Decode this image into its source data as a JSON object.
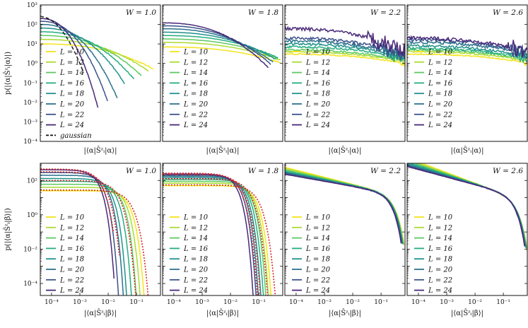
{
  "chart_data": [
    {
      "type": "line",
      "panel_label": "W = 1.0",
      "row": "diagonal",
      "xlabel": "|⟨α|Ŝᶻᵢ|α⟩|",
      "ylabel": "p(|⟨α|Ŝᶻᵢ|α⟩|)",
      "xscale": "linear",
      "xlim": [
        0,
        0.5
      ],
      "yscale": "log",
      "ylim": [
        0.0001,
        1000
      ],
      "legend": [
        "L = 10",
        "L = 12",
        "L = 14",
        "L = 16",
        "L = 18",
        "L = 20",
        "L = 22",
        "L = 24",
        "gaussian"
      ],
      "series": [
        {
          "name": "L = 10",
          "plateau": 10,
          "knee": 0.3,
          "cutoff": 0.47
        },
        {
          "name": "L = 12",
          "plateau": 17,
          "knee": 0.26,
          "cutoff": 0.45
        },
        {
          "name": "L = 14",
          "plateau": 27,
          "knee": 0.22,
          "cutoff": 0.42
        },
        {
          "name": "L = 16",
          "plateau": 42,
          "knee": 0.19,
          "cutoff": 0.39
        },
        {
          "name": "L = 18",
          "plateau": 65,
          "knee": 0.16,
          "cutoff": 0.35
        },
        {
          "name": "L = 20",
          "plateau": 100,
          "knee": 0.13,
          "cutoff": 0.32
        },
        {
          "name": "L = 22",
          "plateau": 145,
          "knee": 0.11,
          "cutoff": 0.28
        },
        {
          "name": "L = 24",
          "plateau": 200,
          "knee": 0.09,
          "cutoff": 0.24
        },
        {
          "name": "gaussian",
          "plateau": 250,
          "knee": 0.07,
          "cutoff": 0.18,
          "style": "dashed",
          "color": "#111111"
        }
      ]
    },
    {
      "type": "line",
      "panel_label": "W = 1.8",
      "row": "diagonal",
      "xlabel": "|⟨α|Ŝᶻᵢ|α⟩|",
      "xscale": "linear",
      "xlim": [
        0,
        0.5
      ],
      "yscale": "log",
      "ylim": [
        0.0001,
        1000
      ],
      "legend": [
        "L = 10",
        "L = 12",
        "L = 14",
        "L = 16",
        "L = 18",
        "L = 20",
        "L = 22",
        "L = 24"
      ],
      "series": [
        {
          "name": "L = 10",
          "plateau": 7,
          "knee": 0.38,
          "cutoff": 0.49
        },
        {
          "name": "L = 12",
          "plateau": 12,
          "knee": 0.36,
          "cutoff": 0.49
        },
        {
          "name": "L = 14",
          "plateau": 18,
          "knee": 0.34,
          "cutoff": 0.48
        },
        {
          "name": "L = 16",
          "plateau": 27,
          "knee": 0.32,
          "cutoff": 0.48
        },
        {
          "name": "L = 18",
          "plateau": 40,
          "knee": 0.29,
          "cutoff": 0.47
        },
        {
          "name": "L = 20",
          "plateau": 60,
          "knee": 0.26,
          "cutoff": 0.46
        },
        {
          "name": "L = 22",
          "plateau": 85,
          "knee": 0.24,
          "cutoff": 0.45
        },
        {
          "name": "L = 24",
          "plateau": 120,
          "knee": 0.22,
          "cutoff": 0.44
        }
      ]
    },
    {
      "type": "line",
      "panel_label": "W = 2.2",
      "row": "diagonal",
      "xlabel": "|⟨α|Ŝᶻᵢ|α⟩|",
      "xscale": "linear",
      "xlim": [
        0,
        0.5
      ],
      "yscale": "log",
      "ylim": [
        0.0001,
        1000
      ],
      "legend": [
        "L = 10",
        "L = 12",
        "L = 14",
        "L = 16",
        "L = 18",
        "L = 20",
        "L = 22",
        "L = 24"
      ],
      "series": [
        {
          "name": "L = 10",
          "plateau": 3,
          "knee": 0.48,
          "cutoff": 0.5
        },
        {
          "name": "L = 12",
          "plateau": 4,
          "knee": 0.46,
          "cutoff": 0.5
        },
        {
          "name": "L = 14",
          "plateau": 5,
          "knee": 0.45,
          "cutoff": 0.5
        },
        {
          "name": "L = 16",
          "plateau": 7,
          "knee": 0.44,
          "cutoff": 0.5
        },
        {
          "name": "L = 18",
          "plateau": 10,
          "knee": 0.42,
          "cutoff": 0.5
        },
        {
          "name": "L = 20",
          "plateau": 14,
          "knee": 0.4,
          "cutoff": 0.5
        },
        {
          "name": "L = 22",
          "plateau": 20,
          "knee": 0.38,
          "cutoff": 0.5
        },
        {
          "name": "L = 24",
          "plateau": 60,
          "knee": 0.34,
          "cutoff": 0.5
        }
      ]
    },
    {
      "type": "line",
      "panel_label": "W = 2.6",
      "row": "diagonal",
      "xlabel": "|⟨α|Ŝᶻᵢ|α⟩|",
      "xscale": "linear",
      "xlim": [
        0,
        0.5
      ],
      "yscale": "log",
      "ylim": [
        0.0001,
        1000
      ],
      "legend": [
        "L = 10",
        "L = 12",
        "L = 14",
        "L = 16",
        "L = 18",
        "L = 20",
        "L = 22",
        "L = 24"
      ],
      "series": [
        {
          "name": "L = 10",
          "plateau": 3,
          "knee": 0.49,
          "cutoff": 0.5
        },
        {
          "name": "L = 12",
          "plateau": 4,
          "knee": 0.48,
          "cutoff": 0.5
        },
        {
          "name": "L = 14",
          "plateau": 5,
          "knee": 0.47,
          "cutoff": 0.5
        },
        {
          "name": "L = 16",
          "plateau": 6,
          "knee": 0.46,
          "cutoff": 0.5
        },
        {
          "name": "L = 18",
          "plateau": 8,
          "knee": 0.45,
          "cutoff": 0.5
        },
        {
          "name": "L = 20",
          "plateau": 12,
          "knee": 0.44,
          "cutoff": 0.5
        },
        {
          "name": "L = 22",
          "plateau": 16,
          "knee": 0.43,
          "cutoff": 0.5
        },
        {
          "name": "L = 24",
          "plateau": 20,
          "knee": 0.42,
          "cutoff": 0.5
        }
      ]
    },
    {
      "type": "line",
      "panel_label": "W = 1.0",
      "row": "offdiagonal",
      "xlabel": "|⟨α|Ŝᶻᵢ|β⟩|",
      "ylabel": "p(|⟨α|Ŝᶻᵢ|β⟩|)",
      "xscale": "log",
      "xlim": [
        4e-05,
        0.7
      ],
      "yscale": "log",
      "ylim": [
        2e-05,
        1000
      ],
      "xticks": [
        "10⁻⁴",
        "10⁻³",
        "10⁻²",
        "10⁻¹"
      ],
      "red_dotted_fits": true,
      "legend": [
        "L = 10",
        "L = 12",
        "L = 14",
        "L = 16",
        "L = 18",
        "L = 20",
        "L = 22",
        "L = 24"
      ],
      "series": [
        {
          "name": "L = 10",
          "plateau": 25,
          "knee": 0.035,
          "cutoff": 0.35
        },
        {
          "name": "L = 12",
          "plateau": 40,
          "knee": 0.025,
          "cutoff": 0.25
        },
        {
          "name": "L = 14",
          "plateau": 60,
          "knee": 0.018,
          "cutoff": 0.16
        },
        {
          "name": "L = 16",
          "plateau": 90,
          "knee": 0.012,
          "cutoff": 0.1
        },
        {
          "name": "L = 18",
          "plateau": 130,
          "knee": 0.008,
          "cutoff": 0.065
        },
        {
          "name": "L = 20",
          "plateau": 200,
          "knee": 0.006,
          "cutoff": 0.042
        },
        {
          "name": "L = 22",
          "plateau": 290,
          "knee": 0.004,
          "cutoff": 0.026
        },
        {
          "name": "L = 24",
          "plateau": 420,
          "knee": 0.003,
          "cutoff": 0.016
        }
      ]
    },
    {
      "type": "line",
      "panel_label": "W = 1.8",
      "row": "offdiagonal",
      "xlabel": "|⟨α|Ŝᶻᵢ|β⟩|",
      "xscale": "log",
      "xlim": [
        4e-05,
        0.7
      ],
      "yscale": "log",
      "ylim": [
        2e-05,
        1000
      ],
      "xticks": [
        "10⁻⁴",
        "10⁻³",
        "10⁻²",
        "10⁻¹"
      ],
      "red_dotted_fits": true,
      "legend": [
        "L = 10",
        "L = 12",
        "L = 14",
        "L = 16",
        "L = 18",
        "L = 20",
        "L = 22",
        "L = 24"
      ],
      "series": [
        {
          "name": "L = 10",
          "plateau": 50,
          "knee": 0.05,
          "cutoff": 0.6
        },
        {
          "name": "L = 12",
          "plateau": 70,
          "knee": 0.04,
          "cutoff": 0.55
        },
        {
          "name": "L = 14",
          "plateau": 90,
          "knee": 0.032,
          "cutoff": 0.5
        },
        {
          "name": "L = 16",
          "plateau": 115,
          "knee": 0.026,
          "cutoff": 0.45
        },
        {
          "name": "L = 18",
          "plateau": 145,
          "knee": 0.021,
          "cutoff": 0.4
        },
        {
          "name": "L = 20",
          "plateau": 175,
          "knee": 0.017,
          "cutoff": 0.35
        },
        {
          "name": "L = 22",
          "plateau": 205,
          "knee": 0.014,
          "cutoff": 0.3
        },
        {
          "name": "L = 24",
          "plateau": 240,
          "knee": 0.011,
          "cutoff": 0.25
        }
      ]
    },
    {
      "type": "line",
      "panel_label": "W = 2.2",
      "row": "offdiagonal",
      "xlabel": "|⟨α|Ŝᶻᵢ|β⟩|",
      "xscale": "log",
      "xlim": [
        4e-05,
        0.7
      ],
      "yscale": "log",
      "ylim": [
        2e-05,
        1000
      ],
      "xticks": [
        "10⁻⁴",
        "10⁻³",
        "10⁻²",
        "10⁻¹"
      ],
      "legend": [
        "L = 10",
        "L = 12",
        "L = 14",
        "L = 16",
        "L = 18",
        "L = 20",
        "L = 22",
        "L = 24"
      ],
      "series": [
        {
          "name": "L = 10",
          "y_at_1e-4": 400,
          "y_at_1e-2": 60,
          "cutoff": 0.65
        },
        {
          "name": "L = 12",
          "y_at_1e-4": 350,
          "y_at_1e-2": 57,
          "cutoff": 0.63
        },
        {
          "name": "L = 14",
          "y_at_1e-4": 300,
          "y_at_1e-2": 55,
          "cutoff": 0.61
        },
        {
          "name": "L = 16",
          "y_at_1e-4": 260,
          "y_at_1e-2": 52,
          "cutoff": 0.59
        },
        {
          "name": "L = 18",
          "y_at_1e-4": 230,
          "y_at_1e-2": 50,
          "cutoff": 0.57
        },
        {
          "name": "L = 20",
          "y_at_1e-4": 210,
          "y_at_1e-2": 48,
          "cutoff": 0.55
        },
        {
          "name": "L = 22",
          "y_at_1e-4": 190,
          "y_at_1e-2": 46,
          "cutoff": 0.53
        },
        {
          "name": "L = 24",
          "y_at_1e-4": 175,
          "y_at_1e-2": 45,
          "cutoff": 0.51
        }
      ]
    },
    {
      "type": "line",
      "panel_label": "W = 2.6",
      "row": "offdiagonal",
      "xlabel": "|⟨α|Ŝᶻᵢ|β⟩|",
      "xscale": "log",
      "xlim": [
        4e-05,
        0.7
      ],
      "yscale": "log",
      "ylim": [
        2e-05,
        1000
      ],
      "xticks": [
        "10⁻⁴",
        "10⁻³",
        "10⁻²",
        "10⁻¹"
      ],
      "legend": [
        "L = 10",
        "L = 12",
        "L = 14",
        "L = 16",
        "L = 18",
        "L = 20",
        "L = 22",
        "L = 24"
      ],
      "series": [
        {
          "name": "L = 10",
          "y_at_1e-4": 1200,
          "y_at_1e-2": 70,
          "cutoff": 0.7
        },
        {
          "name": "L = 12",
          "y_at_1e-4": 1000,
          "y_at_1e-2": 68,
          "cutoff": 0.68
        },
        {
          "name": "L = 14",
          "y_at_1e-4": 850,
          "y_at_1e-2": 66,
          "cutoff": 0.66
        },
        {
          "name": "L = 16",
          "y_at_1e-4": 720,
          "y_at_1e-2": 64,
          "cutoff": 0.64
        },
        {
          "name": "L = 18",
          "y_at_1e-4": 620,
          "y_at_1e-2": 62,
          "cutoff": 0.62
        },
        {
          "name": "L = 20",
          "y_at_1e-4": 540,
          "y_at_1e-2": 60,
          "cutoff": 0.6
        },
        {
          "name": "L = 22",
          "y_at_1e-4": 480,
          "y_at_1e-2": 58,
          "cutoff": 0.58
        },
        {
          "name": "L = 24",
          "y_at_1e-4": 430,
          "y_at_1e-2": 56,
          "cutoff": 0.56
        }
      ]
    }
  ],
  "colors": [
    "#f5e41c",
    "#aadc32",
    "#5ec962",
    "#27ad81",
    "#21918c",
    "#2c728e",
    "#3b528b",
    "#482878"
  ],
  "gaussian_color": "#111111",
  "fit_color": "#d62728",
  "top_yticks": [
    "10⁻⁴",
    "10⁻³",
    "10⁻²",
    "10⁻¹",
    "10⁰",
    "10¹",
    "10²",
    "10³"
  ],
  "bottom_yticks": [
    "10⁻⁴",
    "10⁻²",
    "10⁰",
    "10²"
  ]
}
